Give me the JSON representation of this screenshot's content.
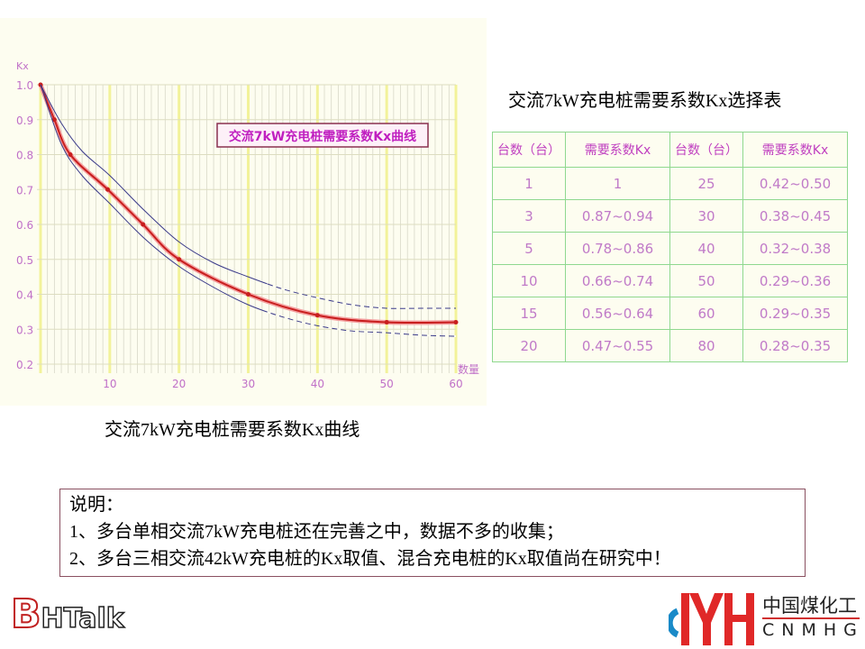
{
  "chart_caption": "交流7kW充电桩需要系数Kx曲线",
  "table_caption": "交流7kW充电桩需要系数Kx选择表",
  "chart_data": {
    "type": "line",
    "title": "交流7kW充电桩需要系数Kx曲线",
    "ylabel": "Kx",
    "xlabel": "数量",
    "xlim": [
      0,
      60
    ],
    "ylim": [
      0.2,
      1.0
    ],
    "xticks": [
      "10",
      "20",
      "30",
      "40",
      "50",
      "60"
    ],
    "yticks": [
      "1.0",
      "0.9",
      "0.8",
      "0.7",
      "0.6",
      "0.5",
      "0.4",
      "0.3",
      "0.2"
    ],
    "grid": true,
    "series": [
      {
        "style": "solid-red-with-points",
        "color": "#c81e1e",
        "x": [
          0,
          2,
          4.3,
          9.7,
          14.8,
          20,
          30,
          40,
          50,
          60
        ],
        "y": [
          1.0,
          0.9,
          0.8,
          0.7,
          0.6,
          0.5,
          0.4,
          0.34,
          0.32,
          0.32
        ]
      },
      {
        "style": "upper-band",
        "color": "#3a3a8a",
        "x": [
          0,
          3,
          6,
          10,
          15,
          20,
          25,
          30,
          35,
          40,
          45,
          50,
          55,
          60
        ],
        "y": [
          1.0,
          0.89,
          0.81,
          0.74,
          0.64,
          0.55,
          0.49,
          0.45,
          0.415,
          0.39,
          0.37,
          0.36,
          0.36,
          0.36
        ]
      },
      {
        "style": "lower-band",
        "color": "#3a3a8a",
        "x": [
          0,
          3,
          6,
          10,
          15,
          20,
          25,
          30,
          35,
          40,
          45,
          50,
          55,
          60
        ],
        "y": [
          1.0,
          0.83,
          0.74,
          0.66,
          0.56,
          0.48,
          0.42,
          0.37,
          0.335,
          0.31,
          0.295,
          0.29,
          0.283,
          0.28
        ]
      }
    ],
    "colors": {
      "background": "#fdfdf0",
      "major_grid": "#f2f29a",
      "minor_grid": "#d8d8c8",
      "tick_label": "#c070c8",
      "title_border": "#8a3050"
    }
  },
  "table": {
    "headers": [
      "台数（台）",
      "需要系数Kx",
      "台数（台）",
      "需要系数Kx"
    ],
    "rows": [
      [
        "1",
        "1",
        "25",
        "0.42~0.50"
      ],
      [
        "3",
        "0.87~0.94",
        "30",
        "0.38~0.45"
      ],
      [
        "5",
        "0.78~0.86",
        "40",
        "0.32~0.38"
      ],
      [
        "10",
        "0.66~0.74",
        "50",
        "0.29~0.36"
      ],
      [
        "15",
        "0.56~0.64",
        "60",
        "0.29~0.35"
      ],
      [
        "20",
        "0.47~0.55",
        "80",
        "0.28~0.35"
      ]
    ]
  },
  "note": {
    "title": "说明：",
    "lines": [
      "1、多台单相交流7kW充电桩还在完善之中，数据不多的收集；",
      "2、多台三相交流42kW充电桩的Kx取值、混合充电桩的Kx取值尚在研究中！"
    ]
  },
  "logos": {
    "left": "BHTalk",
    "right_cn": "中国煤化工",
    "right_en": "CNMHG"
  }
}
